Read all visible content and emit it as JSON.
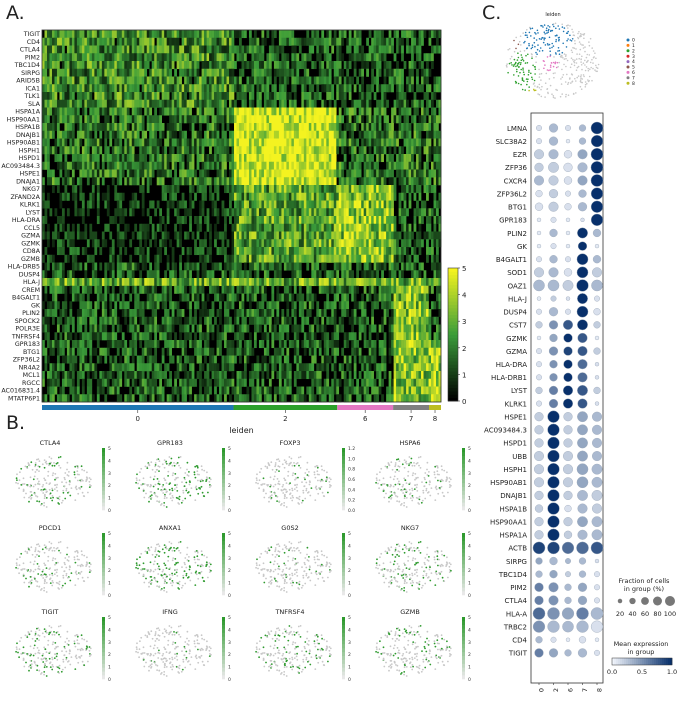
{
  "panels": {
    "a": "A.",
    "b": "B.",
    "c": "C."
  },
  "colors": {
    "heat_low": "#000000",
    "heat_mid": "#3a9c3a",
    "heat_high": "#f4f320",
    "dot_low": "#f0f4fb",
    "dot_high": "#08306b",
    "umap_gray": "#c8c8c8",
    "umap_green": "#2e9a2e"
  },
  "chart_data": [
    {
      "type": "heatmap",
      "genes": [
        "TIGIT",
        "CD4",
        "CTLA4",
        "PIM2",
        "TBC1D4",
        "SIRPG",
        "ARID5B",
        "ICA1",
        "TLK1",
        "SLA",
        "HSPA1A",
        "HSP90AA1",
        "HSPA1B",
        "DNAJB1",
        "HSP90AB1",
        "HSPH1",
        "HSPD1",
        "AC093484.3",
        "HSPE1",
        "DNAJA1",
        "NKG7",
        "ZFAND2A",
        "KLRK1",
        "LYST",
        "HLA-DRA",
        "CCL5",
        "GZMA",
        "GZMK",
        "CD8A",
        "GZMB",
        "HLA-DRB5",
        "DUSP4",
        "HLA-J",
        "CREM",
        "B4GALT1",
        "GK",
        "PLIN2",
        "SPOCK2",
        "POLR3E",
        "TNFRSF4",
        "GPR183",
        "BTG1",
        "ZFP36L2",
        "NR4A2",
        "MCL1",
        "RGCC",
        "AC016831.4",
        "MTATP6P1"
      ],
      "groups": [
        {
          "name": "0",
          "fraction": 0.48,
          "color": "#1f77b4"
        },
        {
          "name": "2",
          "fraction": 0.26,
          "color": "#2ca02c"
        },
        {
          "name": "6",
          "fraction": 0.14,
          "color": "#e377c2"
        },
        {
          "name": "7",
          "fraction": 0.09,
          "color": "#7f7f7f"
        },
        {
          "name": "8",
          "fraction": 0.03,
          "color": "#bcbd22"
        }
      ],
      "xlabel": "leiden",
      "colorbar": {
        "ticks": [
          "0",
          "1",
          "2",
          "3",
          "4",
          "5"
        ],
        "range": [
          0,
          5
        ]
      }
    },
    {
      "type": "scatter",
      "panels": [
        {
          "gene": "CTLA4",
          "ticks": [
            "5",
            "4",
            "3",
            "2",
            "1",
            "0"
          ],
          "density": 0.25
        },
        {
          "gene": "GPR183",
          "ticks": [
            "5",
            "4",
            "3",
            "2",
            "1",
            "0"
          ],
          "density": 0.4
        },
        {
          "gene": "FOXP3",
          "ticks": [
            "1.2",
            "1.0",
            "0.8",
            "0.6",
            "0.4",
            "0.2",
            "0.0"
          ],
          "density": 0.1
        },
        {
          "gene": "HSPA6",
          "ticks": [
            "5",
            "4",
            "3",
            "2",
            "1",
            "0"
          ],
          "density": 0.2
        },
        {
          "gene": "PDCD1",
          "ticks": [
            "5",
            "4",
            "3",
            "2",
            "1",
            "0"
          ],
          "density": 0.15
        },
        {
          "gene": "ANXA1",
          "ticks": [
            "5",
            "4",
            "3",
            "2",
            "1",
            "0"
          ],
          "density": 0.5
        },
        {
          "gene": "G0S2",
          "ticks": [
            "5",
            "4",
            "3",
            "2",
            "1",
            "0"
          ],
          "density": 0.12
        },
        {
          "gene": "NKG7",
          "ticks": [
            "5",
            "4",
            "3",
            "2",
            "1",
            "0"
          ],
          "density": 0.3
        },
        {
          "gene": "TIGIT",
          "ticks": [
            "5",
            "4",
            "3",
            "2",
            "1",
            "0"
          ],
          "density": 0.3
        },
        {
          "gene": "IFNG",
          "ticks": [
            "5",
            "4",
            "3",
            "2",
            "1",
            "0"
          ],
          "density": 0.08
        },
        {
          "gene": "TNFRSF4",
          "ticks": [
            "5",
            "4",
            "3",
            "2",
            "1",
            "0"
          ],
          "density": 0.22
        },
        {
          "gene": "GZMB",
          "ticks": [
            "5",
            "4",
            "3",
            "2",
            "1",
            "0"
          ],
          "density": 0.2
        }
      ]
    },
    {
      "type": "scatter",
      "title": "leiden",
      "legend": [
        "0",
        "1",
        "2",
        "3",
        "4",
        "5",
        "6",
        "7",
        "8"
      ],
      "legend_colors": [
        "#1f77b4",
        "#ff7f0e",
        "#2ca02c",
        "#d62728",
        "#9467bd",
        "#8c564b",
        "#e377c2",
        "#7f7f7f",
        "#bcbd22"
      ]
    },
    {
      "type": "scatter",
      "genes": [
        "LMNA",
        "SLC38A2",
        "EZR",
        "ZFP36",
        "CXCR4",
        "ZFP36L2",
        "BTG1",
        "GPR183",
        "PLIN2",
        "GK",
        "B4GALT1",
        "SOD1",
        "OAZ1",
        "HLA-J",
        "DUSP4",
        "CST7",
        "GZMK",
        "GZMA",
        "HLA-DRA",
        "HLA-DRB1",
        "LYST",
        "KLRK1",
        "HSPE1",
        "AC093484.3",
        "HSPD1",
        "UBB",
        "HSPH1",
        "HSP90AB1",
        "DNAJB1",
        "HSPA1B",
        "HSP90AA1",
        "HSPA1A",
        "ACTB",
        "SIRPG",
        "TBC1D4",
        "PIM2",
        "CTLA4",
        "HLA-A",
        "TRBC2",
        "CD4",
        "TIGIT"
      ],
      "groups": [
        "0",
        "2",
        "6",
        "7",
        "8"
      ],
      "fraction": [
        [
          0.2,
          0.5,
          0.2,
          0.3,
          0.95
        ],
        [
          0.2,
          0.5,
          0.1,
          0.3,
          0.9
        ],
        [
          0.6,
          0.6,
          0.4,
          0.6,
          0.95
        ],
        [
          0.5,
          0.7,
          0.5,
          0.6,
          0.95
        ],
        [
          0.6,
          0.6,
          0.4,
          0.6,
          0.95
        ],
        [
          0.3,
          0.5,
          0.2,
          0.4,
          0.9
        ],
        [
          0.4,
          0.6,
          0.3,
          0.5,
          0.9
        ],
        [
          0.1,
          0.2,
          0.1,
          0.1,
          0.9
        ],
        [
          0.1,
          0.4,
          0.1,
          0.7,
          0.4
        ],
        [
          0.1,
          0.2,
          0.1,
          0.5,
          0.1
        ],
        [
          0.2,
          0.4,
          0.2,
          0.8,
          0.4
        ],
        [
          0.6,
          0.6,
          0.4,
          0.8,
          0.6
        ],
        [
          0.8,
          0.8,
          0.7,
          0.9,
          0.8
        ],
        [
          0.1,
          0.2,
          0.1,
          0.7,
          0.2
        ],
        [
          0.2,
          0.5,
          0.2,
          0.8,
          0.3
        ],
        [
          0.3,
          0.5,
          0.6,
          0.7,
          0.3
        ],
        [
          0.1,
          0.4,
          0.5,
          0.6,
          0.1
        ],
        [
          0.2,
          0.5,
          0.5,
          0.6,
          0.3
        ],
        [
          0.2,
          0.4,
          0.5,
          0.6,
          0.1
        ],
        [
          0.2,
          0.4,
          0.5,
          0.6,
          0.1
        ],
        [
          0.3,
          0.5,
          0.6,
          0.7,
          0.3
        ],
        [
          0.2,
          0.5,
          0.6,
          0.6,
          0.1
        ],
        [
          0.5,
          0.9,
          0.5,
          0.7,
          0.6
        ],
        [
          0.5,
          0.9,
          0.5,
          0.7,
          0.6
        ],
        [
          0.5,
          0.9,
          0.5,
          0.7,
          0.6
        ],
        [
          0.6,
          0.9,
          0.6,
          0.7,
          0.6
        ],
        [
          0.6,
          0.9,
          0.6,
          0.8,
          0.7
        ],
        [
          0.6,
          0.9,
          0.6,
          0.8,
          0.7
        ],
        [
          0.5,
          0.9,
          0.5,
          0.7,
          0.7
        ],
        [
          0.4,
          0.9,
          0.3,
          0.6,
          0.6
        ],
        [
          0.5,
          0.9,
          0.5,
          0.7,
          0.7
        ],
        [
          0.5,
          0.9,
          0.4,
          0.6,
          0.7
        ],
        [
          0.95,
          0.95,
          0.9,
          0.95,
          0.95
        ],
        [
          0.3,
          0.4,
          0.2,
          0.3,
          0.1
        ],
        [
          0.3,
          0.4,
          0.2,
          0.3,
          0.2
        ],
        [
          0.5,
          0.6,
          0.3,
          0.5,
          0.2
        ],
        [
          0.5,
          0.6,
          0.3,
          0.5,
          0.2
        ],
        [
          0.95,
          0.95,
          0.9,
          0.95,
          0.95
        ],
        [
          0.9,
          0.9,
          0.8,
          0.9,
          0.9
        ],
        [
          0.3,
          0.2,
          0.1,
          0.3,
          0.1
        ],
        [
          0.5,
          0.5,
          0.3,
          0.5,
          0.2
        ]
      ],
      "expression": [
        [
          0.1,
          0.3,
          0.1,
          0.3,
          1.0
        ],
        [
          0.1,
          0.3,
          0.05,
          0.3,
          1.0
        ],
        [
          0.2,
          0.3,
          0.1,
          0.4,
          1.0
        ],
        [
          0.2,
          0.2,
          0.1,
          0.3,
          1.0
        ],
        [
          0.3,
          0.2,
          0.1,
          0.4,
          1.0
        ],
        [
          0.1,
          0.2,
          0.1,
          0.3,
          1.0
        ],
        [
          0.1,
          0.2,
          0.1,
          0.3,
          1.0
        ],
        [
          0.05,
          0.1,
          0.05,
          0.1,
          1.0
        ],
        [
          0.05,
          0.3,
          0.05,
          1.0,
          0.3
        ],
        [
          0.05,
          0.1,
          0.05,
          1.0,
          0.05
        ],
        [
          0.1,
          0.3,
          0.1,
          1.0,
          0.3
        ],
        [
          0.2,
          0.3,
          0.1,
          1.0,
          0.2
        ],
        [
          0.3,
          0.3,
          0.2,
          1.0,
          0.3
        ],
        [
          0.05,
          0.2,
          0.1,
          1.0,
          0.1
        ],
        [
          0.1,
          0.3,
          0.1,
          1.0,
          0.1
        ],
        [
          0.2,
          0.5,
          0.8,
          1.0,
          0.2
        ],
        [
          0.05,
          0.4,
          1.0,
          0.8,
          0.05
        ],
        [
          0.1,
          0.5,
          0.9,
          0.8,
          0.2
        ],
        [
          0.1,
          0.5,
          1.0,
          0.7,
          0.1
        ],
        [
          0.1,
          0.5,
          1.0,
          0.7,
          0.1
        ],
        [
          0.2,
          0.6,
          1.0,
          0.8,
          0.2
        ],
        [
          0.1,
          0.6,
          1.0,
          0.8,
          0.1
        ],
        [
          0.2,
          1.0,
          0.2,
          0.4,
          0.3
        ],
        [
          0.2,
          1.0,
          0.2,
          0.4,
          0.3
        ],
        [
          0.2,
          1.0,
          0.2,
          0.4,
          0.3
        ],
        [
          0.2,
          1.0,
          0.2,
          0.4,
          0.3
        ],
        [
          0.2,
          1.0,
          0.2,
          0.4,
          0.3
        ],
        [
          0.2,
          1.0,
          0.2,
          0.4,
          0.3
        ],
        [
          0.2,
          1.0,
          0.2,
          0.3,
          0.2
        ],
        [
          0.2,
          1.0,
          0.1,
          0.3,
          0.2
        ],
        [
          0.2,
          1.0,
          0.2,
          0.4,
          0.3
        ],
        [
          0.2,
          1.0,
          0.2,
          0.3,
          0.3
        ],
        [
          0.9,
          0.9,
          0.7,
          0.7,
          0.8
        ],
        [
          0.4,
          0.3,
          0.3,
          0.3,
          0.1
        ],
        [
          0.3,
          0.4,
          0.2,
          0.3,
          0.1
        ],
        [
          0.6,
          0.5,
          0.3,
          0.4,
          0.1
        ],
        [
          0.6,
          0.5,
          0.3,
          0.4,
          0.1
        ],
        [
          0.7,
          0.5,
          0.4,
          0.6,
          0.3
        ],
        [
          0.5,
          0.3,
          0.3,
          0.3,
          0.1
        ],
        [
          0.3,
          0.1,
          0.05,
          0.1,
          0.05
        ],
        [
          0.6,
          0.4,
          0.3,
          0.3,
          0.1
        ]
      ],
      "size_legend": {
        "title": "Fraction of cells in group (%)",
        "ticks": [
          "20",
          "40",
          "60",
          "80",
          "100"
        ]
      },
      "color_legend": {
        "title": "Mean expression in group",
        "ticks": [
          "0.0",
          "0.5",
          "1.0"
        ]
      }
    }
  ]
}
